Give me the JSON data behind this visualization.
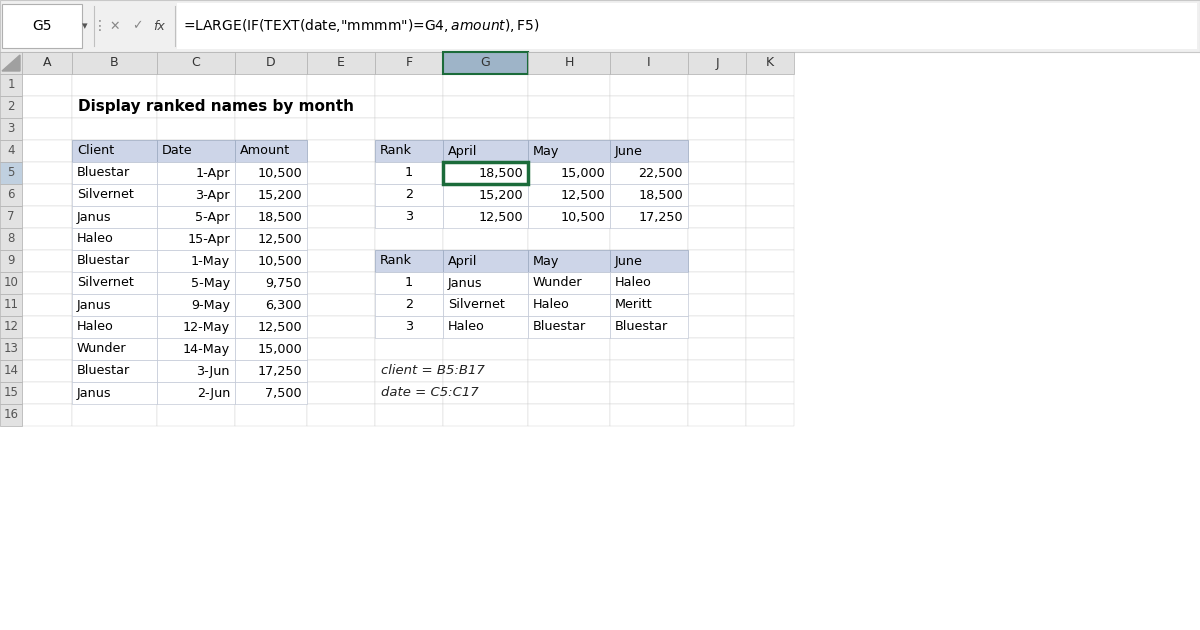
{
  "formula_bar_cell": "G5",
  "formula_bar_text": "=LARGE(IF(TEXT(date,\"mmmm\")=G$4,amount),$F5)",
  "title": "Display ranked names by month",
  "col_headers": [
    "A",
    "B",
    "C",
    "D",
    "E",
    "F",
    "G",
    "H",
    "I",
    "J",
    "K"
  ],
  "left_table_header": [
    "Client",
    "Date",
    "Amount"
  ],
  "left_table_data": [
    [
      "Bluestar",
      "1-Apr",
      "10,500"
    ],
    [
      "Silvernet",
      "3-Apr",
      "15,200"
    ],
    [
      "Janus",
      "5-Apr",
      "18,500"
    ],
    [
      "Haleo",
      "15-Apr",
      "12,500"
    ],
    [
      "Bluestar",
      "1-May",
      "10,500"
    ],
    [
      "Silvernet",
      "5-May",
      "9,750"
    ],
    [
      "Janus",
      "9-May",
      "6,300"
    ],
    [
      "Haleo",
      "12-May",
      "12,500"
    ],
    [
      "Wunder",
      "14-May",
      "15,000"
    ],
    [
      "Bluestar",
      "3-Jun",
      "17,250"
    ],
    [
      "Janus",
      "2-Jun",
      "7,500"
    ]
  ],
  "top_right_header": [
    "Rank",
    "April",
    "May",
    "June"
  ],
  "top_right_data": [
    [
      "1",
      "18,500",
      "15,000",
      "22,500"
    ],
    [
      "2",
      "15,200",
      "12,500",
      "18,500"
    ],
    [
      "3",
      "12,500",
      "10,500",
      "17,250"
    ]
  ],
  "bottom_right_header": [
    "Rank",
    "April",
    "May",
    "June"
  ],
  "bottom_right_data": [
    [
      "1",
      "Janus",
      "Wunder",
      "Haleo"
    ],
    [
      "2",
      "Silvernet",
      "Haleo",
      "Meritt"
    ],
    [
      "3",
      "Haleo",
      "Bluestar",
      "Bluestar"
    ]
  ],
  "annotations": [
    "client = B5:B17",
    "date = C5:C17"
  ],
  "header_bg": "#cdd5e8",
  "selected_col_bg": "#b8c8d8",
  "selected_cell_border": "#1b6b3a",
  "col_header_bg": "#e2e2e2",
  "row_header_bg": "#e2e2e2",
  "selected_row_header_bg": "#c0d0e0",
  "selected_col_header_bg": "#9eb4c8"
}
